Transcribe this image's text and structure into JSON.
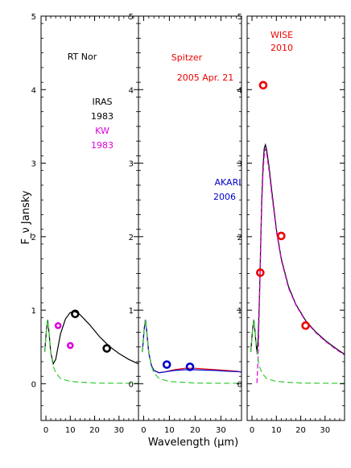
{
  "chart_data": {
    "type": "scatter",
    "xlabel": "Wavelength (μm)",
    "ylabel": "F_ν Jansky",
    "xlim": [
      -2,
      38
    ],
    "ylim": [
      -0.5,
      5
    ],
    "xticks": [
      0,
      10,
      20,
      30
    ],
    "yticks": [
      0,
      1,
      2,
      3,
      4,
      5
    ],
    "grid": false,
    "panels": [
      {
        "id": "p1",
        "annotations": [
          {
            "text": "RT Nor",
            "color": "#000000"
          },
          {
            "text": "IRAS",
            "color": "#000000"
          },
          {
            "text": "1983",
            "color": "#000000"
          },
          {
            "text": "KW",
            "color": "#dd00dd"
          },
          {
            "text": "1983",
            "color": "#dd00dd"
          }
        ],
        "points": [
          {
            "group": "IRAS 1983",
            "color": "#000000",
            "xy": [
              [
                12,
                0.95
              ],
              [
                25,
                0.48
              ]
            ]
          },
          {
            "group": "KW 1983",
            "color": "#dd00dd",
            "xy": [
              [
                5,
                0.79
              ],
              [
                10,
                0.52
              ]
            ]
          }
        ],
        "lines": [
          {
            "name": "model",
            "color": "#000000",
            "dash": "",
            "xy": [
              [
                -0.5,
                0.43
              ],
              [
                0.2,
                0.73
              ],
              [
                0.7,
                0.87
              ],
              [
                1.2,
                0.72
              ],
              [
                2,
                0.42
              ],
              [
                3,
                0.27
              ],
              [
                4,
                0.33
              ],
              [
                6,
                0.68
              ],
              [
                8,
                0.88
              ],
              [
                10,
                0.97
              ],
              [
                12,
                0.98
              ],
              [
                14,
                0.94
              ],
              [
                18,
                0.8
              ],
              [
                22,
                0.64
              ],
              [
                26,
                0.51
              ],
              [
                30,
                0.41
              ],
              [
                34,
                0.33
              ],
              [
                38,
                0.27
              ]
            ]
          },
          {
            "name": "stellar",
            "color": "#33cc33",
            "dash": "7,4",
            "xy": [
              [
                -0.5,
                0.43
              ],
              [
                0.2,
                0.73
              ],
              [
                0.7,
                0.87
              ],
              [
                1.2,
                0.72
              ],
              [
                2,
                0.42
              ],
              [
                3,
                0.24
              ],
              [
                4,
                0.15
              ],
              [
                6,
                0.07
              ],
              [
                10,
                0.03
              ],
              [
                20,
                0.01
              ],
              [
                38,
                0.005
              ]
            ]
          }
        ]
      },
      {
        "id": "p2",
        "annotations": [
          {
            "text": "Spitzer",
            "color": "#ee0000"
          },
          {
            "text": "2005 Apr. 21",
            "color": "#ee0000"
          },
          {
            "text": "AKARI",
            "color": "#0000cc"
          },
          {
            "text": "2006",
            "color": "#0000cc"
          }
        ],
        "points": [
          {
            "group": "AKARI 2006",
            "color": "#0000cc",
            "xy": [
              [
                9,
                0.26
              ],
              [
                18,
                0.23
              ]
            ]
          }
        ],
        "lines": [
          {
            "name": "model",
            "color": "#ee0000",
            "dash": "",
            "xy": [
              [
                -0.5,
                0.43
              ],
              [
                0.2,
                0.73
              ],
              [
                0.7,
                0.87
              ],
              [
                1.2,
                0.72
              ],
              [
                2,
                0.42
              ],
              [
                3,
                0.25
              ],
              [
                4,
                0.18
              ],
              [
                6,
                0.15
              ],
              [
                8,
                0.16
              ],
              [
                12,
                0.19
              ],
              [
                16,
                0.21
              ],
              [
                20,
                0.21
              ],
              [
                24,
                0.2
              ],
              [
                28,
                0.19
              ],
              [
                32,
                0.18
              ],
              [
                36,
                0.17
              ],
              [
                38,
                0.16
              ]
            ]
          },
          {
            "name": "model-blue",
            "color": "#0000cc",
            "dash": "",
            "xy": [
              [
                -0.5,
                0.43
              ],
              [
                0.2,
                0.73
              ],
              [
                0.7,
                0.87
              ],
              [
                1.2,
                0.72
              ],
              [
                2,
                0.42
              ],
              [
                3,
                0.25
              ],
              [
                4,
                0.18
              ],
              [
                6,
                0.15
              ],
              [
                8,
                0.16
              ],
              [
                12,
                0.18
              ],
              [
                16,
                0.19
              ],
              [
                20,
                0.19
              ],
              [
                24,
                0.185
              ],
              [
                28,
                0.18
              ],
              [
                32,
                0.17
              ],
              [
                36,
                0.165
              ],
              [
                38,
                0.16
              ]
            ]
          },
          {
            "name": "stellar",
            "color": "#33cc33",
            "dash": "7,4",
            "xy": [
              [
                -0.5,
                0.43
              ],
              [
                0.2,
                0.73
              ],
              [
                0.7,
                0.87
              ],
              [
                1.2,
                0.72
              ],
              [
                2,
                0.42
              ],
              [
                3,
                0.24
              ],
              [
                4,
                0.15
              ],
              [
                6,
                0.07
              ],
              [
                10,
                0.03
              ],
              [
                20,
                0.01
              ],
              [
                38,
                0.005
              ]
            ]
          }
        ]
      },
      {
        "id": "p3",
        "annotations": [
          {
            "text": "WISE",
            "color": "#ee0000"
          },
          {
            "text": "2010",
            "color": "#ee0000"
          }
        ],
        "points": [
          {
            "group": "WISE 2010",
            "color": "#ee0000",
            "xy": [
              [
                3.4,
                1.51
              ],
              [
                4.6,
                4.06
              ],
              [
                12,
                2.01
              ],
              [
                22,
                0.79
              ]
            ]
          }
        ],
        "lines": [
          {
            "name": "model",
            "color": "#000000",
            "dash": "",
            "xy": [
              [
                -0.5,
                0.43
              ],
              [
                0.2,
                0.73
              ],
              [
                0.7,
                0.87
              ],
              [
                1.2,
                0.72
              ],
              [
                2,
                0.42
              ],
              [
                2.5,
                0.6
              ],
              [
                3,
                1.1
              ],
              [
                3.5,
                1.8
              ],
              [
                4,
                2.5
              ],
              [
                4.5,
                2.95
              ],
              [
                5,
                3.2
              ],
              [
                5.5,
                3.25
              ],
              [
                6,
                3.18
              ],
              [
                7,
                2.95
              ],
              [
                8,
                2.65
              ],
              [
                10,
                2.1
              ],
              [
                12,
                1.7
              ],
              [
                15,
                1.32
              ],
              [
                18,
                1.08
              ],
              [
                22,
                0.86
              ],
              [
                26,
                0.71
              ],
              [
                30,
                0.59
              ],
              [
                34,
                0.49
              ],
              [
                38,
                0.4
              ]
            ]
          },
          {
            "name": "model-magenta",
            "color": "#dd00dd",
            "dash": "6,3",
            "xy": [
              [
                2,
                0.01
              ],
              [
                2.5,
                0.35
              ],
              [
                3,
                1.0
              ],
              [
                3.5,
                1.7
              ],
              [
                4,
                2.4
              ],
              [
                4.5,
                2.85
              ],
              [
                5,
                3.1
              ],
              [
                5.5,
                3.2
              ],
              [
                6,
                3.13
              ],
              [
                7,
                2.9
              ],
              [
                8,
                2.6
              ],
              [
                10,
                2.07
              ],
              [
                12,
                1.68
              ],
              [
                15,
                1.3
              ],
              [
                18,
                1.07
              ],
              [
                22,
                0.85
              ],
              [
                26,
                0.7
              ],
              [
                30,
                0.58
              ],
              [
                34,
                0.48
              ],
              [
                38,
                0.39
              ]
            ]
          },
          {
            "name": "stellar",
            "color": "#33cc33",
            "dash": "7,4",
            "xy": [
              [
                -0.5,
                0.43
              ],
              [
                0.2,
                0.73
              ],
              [
                0.7,
                0.87
              ],
              [
                1.2,
                0.72
              ],
              [
                2,
                0.42
              ],
              [
                3,
                0.24
              ],
              [
                4,
                0.15
              ],
              [
                6,
                0.07
              ],
              [
                10,
                0.03
              ],
              [
                20,
                0.01
              ],
              [
                38,
                0.005
              ]
            ]
          }
        ]
      }
    ]
  }
}
